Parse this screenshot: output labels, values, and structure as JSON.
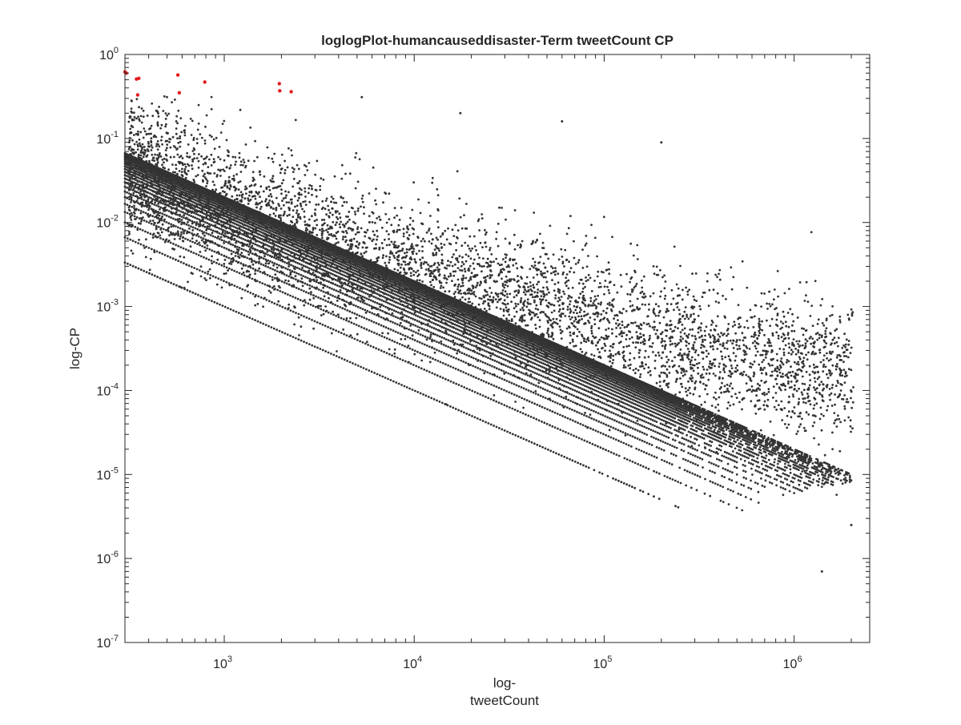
{
  "chart_data": {
    "type": "scatter",
    "title": "loglogPlot-humancauseddisaster-Term tweetCount CP",
    "xlabel_lines": [
      "log-",
      "tweetCount"
    ],
    "ylabel": "log-CP",
    "x_scale": "log",
    "y_scale": "log",
    "xlim": [
      300,
      2500000
    ],
    "ylim": [
      1e-07,
      1
    ],
    "grid": false,
    "box": true,
    "x_ticks": [
      {
        "base": "10",
        "exp": "3",
        "value": 1000
      },
      {
        "base": "10",
        "exp": "4",
        "value": 10000
      },
      {
        "base": "10",
        "exp": "5",
        "value": 100000
      },
      {
        "base": "10",
        "exp": "6",
        "value": 1000000
      }
    ],
    "y_ticks": [
      {
        "base": "10",
        "exp": "0",
        "value": 1
      },
      {
        "base": "10",
        "exp": "-1",
        "value": 0.1
      },
      {
        "base": "10",
        "exp": "-2",
        "value": 0.01
      },
      {
        "base": "10",
        "exp": "-3",
        "value": 0.001
      },
      {
        "base": "10",
        "exp": "-4",
        "value": 0.0001
      },
      {
        "base": "10",
        "exp": "-5",
        "value": 1e-05
      },
      {
        "base": "10",
        "exp": "-6",
        "value": 1e-06
      },
      {
        "base": "10",
        "exp": "-7",
        "value": 1e-07
      }
    ],
    "series": [
      {
        "color": "#333333",
        "description": "dense point cloud with diagonal bands of slope -1 (CP = k / tweetCount, k = 1..n)",
        "band_numerators": [
          1,
          2,
          3,
          4,
          5,
          6,
          7,
          8,
          9,
          10,
          11,
          12,
          13,
          14,
          15,
          16,
          17,
          18,
          19,
          20
        ],
        "band_x_max": [
          280000,
          550000,
          650000,
          750000,
          900000,
          1000000,
          1100000,
          1200000,
          1300000,
          1400000,
          1500000,
          1600000,
          1700000,
          1800000,
          1900000,
          2000000,
          2000000,
          2000000,
          2000000,
          2000000
        ],
        "cloud_center_x": [
          300,
          1000,
          3000,
          10000,
          30000,
          100000,
          300000,
          1000000,
          2000000
        ],
        "cloud_center_y": [
          0.05,
          0.015,
          0.006,
          0.0025,
          0.0012,
          0.0006,
          0.0003,
          0.0002,
          0.00015
        ],
        "sample_points": [
          {
            "x": 5300,
            "y": 0.31
          },
          {
            "x": 17500,
            "y": 0.2
          },
          {
            "x": 60000,
            "y": 0.16
          },
          {
            "x": 200000,
            "y": 0.09
          },
          {
            "x": 740000,
            "y": 0.0015
          },
          {
            "x": 1400000,
            "y": 7e-07
          },
          {
            "x": 1600000,
            "y": 0.0004
          },
          {
            "x": 2000000,
            "y": 2.5e-06
          }
        ]
      },
      {
        "color": "#e31a1c",
        "points": [
          {
            "x": 300,
            "y": 0.62
          },
          {
            "x": 305,
            "y": 0.6
          },
          {
            "x": 345,
            "y": 0.51
          },
          {
            "x": 355,
            "y": 0.52
          },
          {
            "x": 350,
            "y": 0.33
          },
          {
            "x": 570,
            "y": 0.57
          },
          {
            "x": 580,
            "y": 0.35
          },
          {
            "x": 790,
            "y": 0.47
          },
          {
            "x": 1950,
            "y": 0.45
          },
          {
            "x": 1960,
            "y": 0.37
          },
          {
            "x": 2250,
            "y": 0.36
          }
        ]
      }
    ]
  }
}
